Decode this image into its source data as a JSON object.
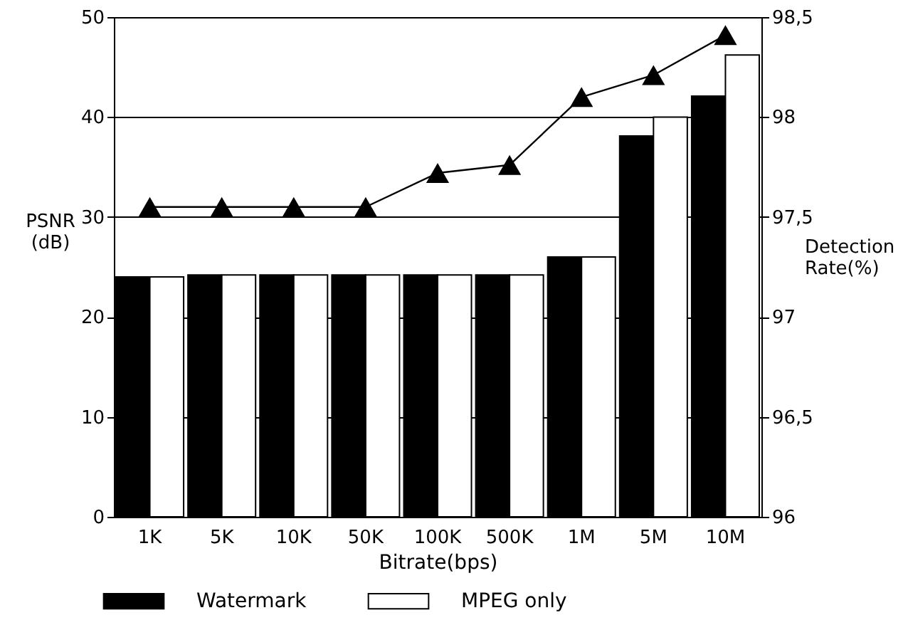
{
  "chart_data": {
    "type": "bar",
    "categories": [
      "1K",
      "5K",
      "10K",
      "50K",
      "100K",
      "500K",
      "1M",
      "5M",
      "10M"
    ],
    "series": [
      {
        "name": "Watermark",
        "color": "#000000",
        "values": [
          24.0,
          24.2,
          24.2,
          24.2,
          24.2,
          24.2,
          26.0,
          38.1,
          42.1
        ]
      },
      {
        "name": "MPEG only",
        "color": "#ffffff",
        "values": [
          24.0,
          24.2,
          24.2,
          24.2,
          24.2,
          24.2,
          26.0,
          40.0,
          46.2
        ]
      },
      {
        "type": "line",
        "axis": "y2",
        "color": "#000000",
        "marker": "triangle",
        "values": [
          97.55,
          97.55,
          97.55,
          97.55,
          97.72,
          97.76,
          98.1,
          98.21,
          98.41
        ]
      }
    ],
    "xlabel": "Bitrate(bps)",
    "ylabel": "PSNR\n(dB)",
    "y2label": "Detection\nRate(%)",
    "ylim": [
      0,
      50
    ],
    "yticks": [
      0,
      10,
      20,
      30,
      40,
      50
    ],
    "y2lim": [
      96,
      98.5
    ],
    "y2ticks": [
      96,
      {
        "value": 96.5,
        "label": "96,5"
      },
      97,
      {
        "value": 97.5,
        "label": "97,5"
      },
      98,
      {
        "value": 98.5,
        "label": "98,5"
      }
    ],
    "grid": "y",
    "legend": "bottom"
  }
}
